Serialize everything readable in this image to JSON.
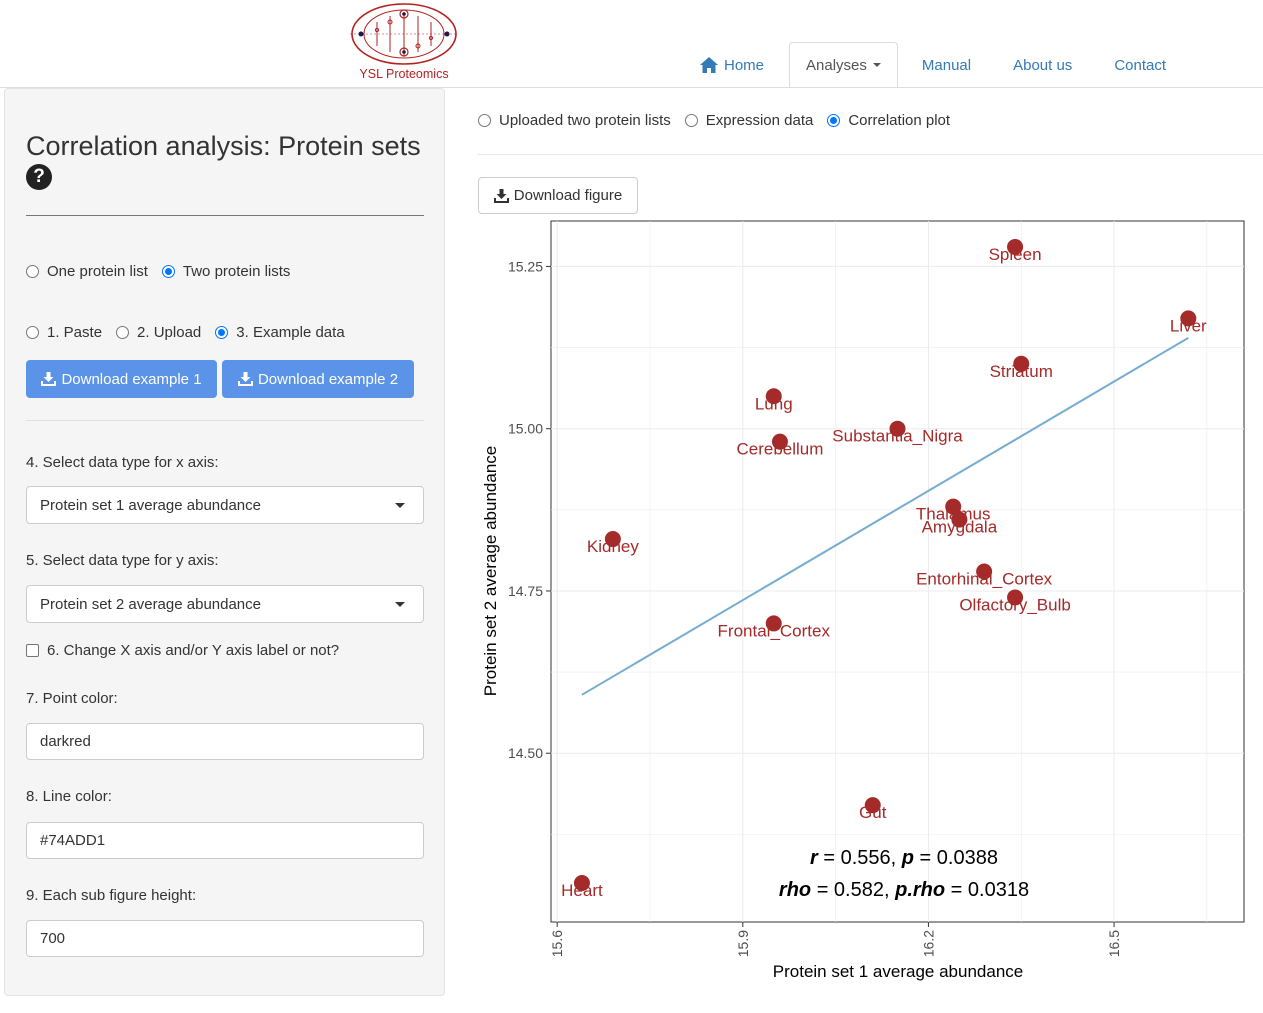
{
  "header": {
    "logo_text": "YSL Proteomics",
    "nav": [
      {
        "label": "Home",
        "icon": "home-icon"
      },
      {
        "label": "Analyses",
        "active": true
      },
      {
        "label": "Manual"
      },
      {
        "label": "About us"
      },
      {
        "label": "Contact"
      }
    ]
  },
  "sidebar": {
    "title": "Correlation analysis: Protein sets",
    "help_icon": "?",
    "list_options": [
      "One protein list",
      "Two protein lists"
    ],
    "list_selected": "Two protein lists",
    "source_options": [
      "1. Paste",
      "2. Upload",
      "3. Example data"
    ],
    "source_selected": "3. Example data",
    "download_example_1": "Download example 1",
    "download_example_2": "Download example 2",
    "x_axis_label": "4. Select data type for x axis:",
    "x_axis_value": "Protein set 1 average abundance",
    "y_axis_label": "5. Select data type for y axis:",
    "y_axis_value": "Protein set 2 average abundance",
    "change_label_checkbox": "6. Change X axis and/or Y axis label or not?",
    "change_label_checked": false,
    "point_color_label": "7. Point color:",
    "point_color_value": "darkred",
    "line_color_label": "8. Line color:",
    "line_color_value": "#74ADD1",
    "height_label": "9. Each sub figure height:",
    "height_value": "700"
  },
  "main": {
    "view_options": [
      "Uploaded two protein lists",
      "Expression data",
      "Correlation plot"
    ],
    "view_selected": "Correlation plot",
    "download_figure": "Download figure"
  },
  "chart_data": {
    "type": "scatter",
    "xlabel": "Protein set 1 average abundance",
    "ylabel": "Protein set 2 average abundance",
    "xlim": [
      15.59,
      16.71
    ],
    "ylim": [
      14.24,
      15.32
    ],
    "xticks": [
      "15.6",
      "15.9",
      "16.2",
      "16.5"
    ],
    "yticks": [
      "14.50",
      "14.75",
      "15.00",
      "15.25"
    ],
    "grid": true,
    "point_color": "#a52a2a",
    "line_color": "#74ADD1",
    "points": [
      {
        "label": "Spleen",
        "x": 16.34,
        "y": 15.28
      },
      {
        "label": "Liver",
        "x": 16.62,
        "y": 15.17
      },
      {
        "label": "Striatum",
        "x": 16.35,
        "y": 15.1
      },
      {
        "label": "Lung",
        "x": 15.95,
        "y": 15.05
      },
      {
        "label": "Substantia_Nigra",
        "x": 16.15,
        "y": 15.0
      },
      {
        "label": "Cerebellum",
        "x": 15.96,
        "y": 14.98
      },
      {
        "label": "Thalamus",
        "x": 16.24,
        "y": 14.88
      },
      {
        "label": "Amygdala",
        "x": 16.25,
        "y": 14.86
      },
      {
        "label": "Kidney",
        "x": 15.69,
        "y": 14.83
      },
      {
        "label": "Entorhinal_Cortex",
        "x": 16.29,
        "y": 14.78
      },
      {
        "label": "Olfactory_Bulb",
        "x": 16.34,
        "y": 14.74
      },
      {
        "label": "Frontal_Cortex",
        "x": 15.95,
        "y": 14.7
      },
      {
        "label": "Gut",
        "x": 16.11,
        "y": 14.42
      },
      {
        "label": "Heart",
        "x": 15.64,
        "y": 14.3
      }
    ],
    "fit_line": {
      "x": [
        15.64,
        16.62
      ],
      "y": [
        14.59,
        15.14
      ]
    },
    "annotation_r": {
      "r_sym": "r",
      "r_val": " = 0.556,  ",
      "p_sym": "p",
      "p_val": " = 0.0388"
    },
    "annotation_rho": {
      "rho_sym": "rho",
      "rho_val": " = 0.582,  ",
      "prho_sym": "p.rho",
      "prho_val": " = 0.0318"
    }
  }
}
